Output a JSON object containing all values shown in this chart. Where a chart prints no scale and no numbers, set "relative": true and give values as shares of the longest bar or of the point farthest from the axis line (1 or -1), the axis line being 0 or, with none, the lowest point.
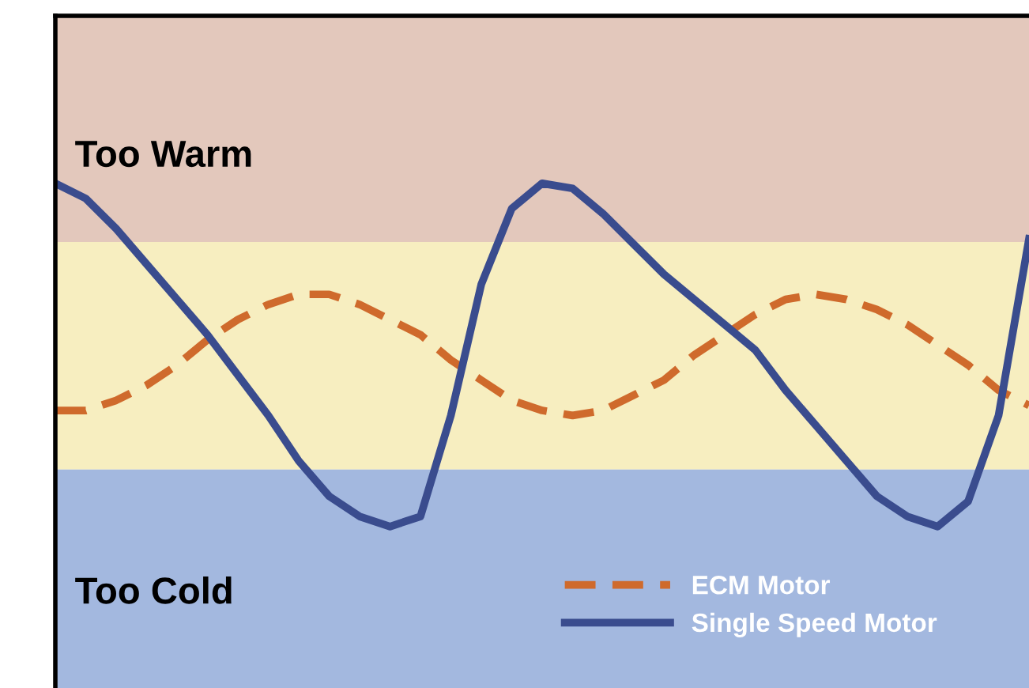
{
  "chart_data": {
    "type": "line",
    "relative": true,
    "categories": [
      null,
      null,
      null,
      null,
      null,
      null,
      null,
      null,
      null,
      null,
      null,
      null,
      null,
      null,
      null,
      null,
      null,
      null,
      null,
      null,
      null,
      null,
      null,
      null,
      null,
      null,
      null,
      null,
      null,
      null,
      null,
      null,
      null
    ],
    "series": [
      {
        "name": "ECM Motor",
        "color": "#cf6a2c",
        "line_style": "dashed",
        "values": [
          0.55,
          0.55,
          0.57,
          0.6,
          0.64,
          0.69,
          0.73,
          0.76,
          0.78,
          0.78,
          0.76,
          0.73,
          0.7,
          0.65,
          0.61,
          0.57,
          0.55,
          0.54,
          0.55,
          0.58,
          0.61,
          0.66,
          0.7,
          0.74,
          0.77,
          0.78,
          0.77,
          0.75,
          0.72,
          0.68,
          0.64,
          0.59,
          0.56
        ]
      },
      {
        "name": "Single Speed Motor",
        "color": "#3a4c8e",
        "line_style": "solid",
        "values": [
          1.0,
          0.97,
          0.91,
          0.84,
          0.77,
          0.7,
          0.62,
          0.54,
          0.45,
          0.38,
          0.34,
          0.32,
          0.34,
          0.54,
          0.8,
          0.95,
          1.0,
          0.99,
          0.94,
          0.88,
          0.82,
          0.77,
          0.72,
          0.67,
          0.59,
          0.52,
          0.45,
          0.38,
          0.34,
          0.32,
          0.37,
          0.54,
          0.89
        ]
      }
    ],
    "annotations": [
      "Too Warm",
      "Too Cold"
    ],
    "legend": "bottom right",
    "marker": "none"
  }
}
